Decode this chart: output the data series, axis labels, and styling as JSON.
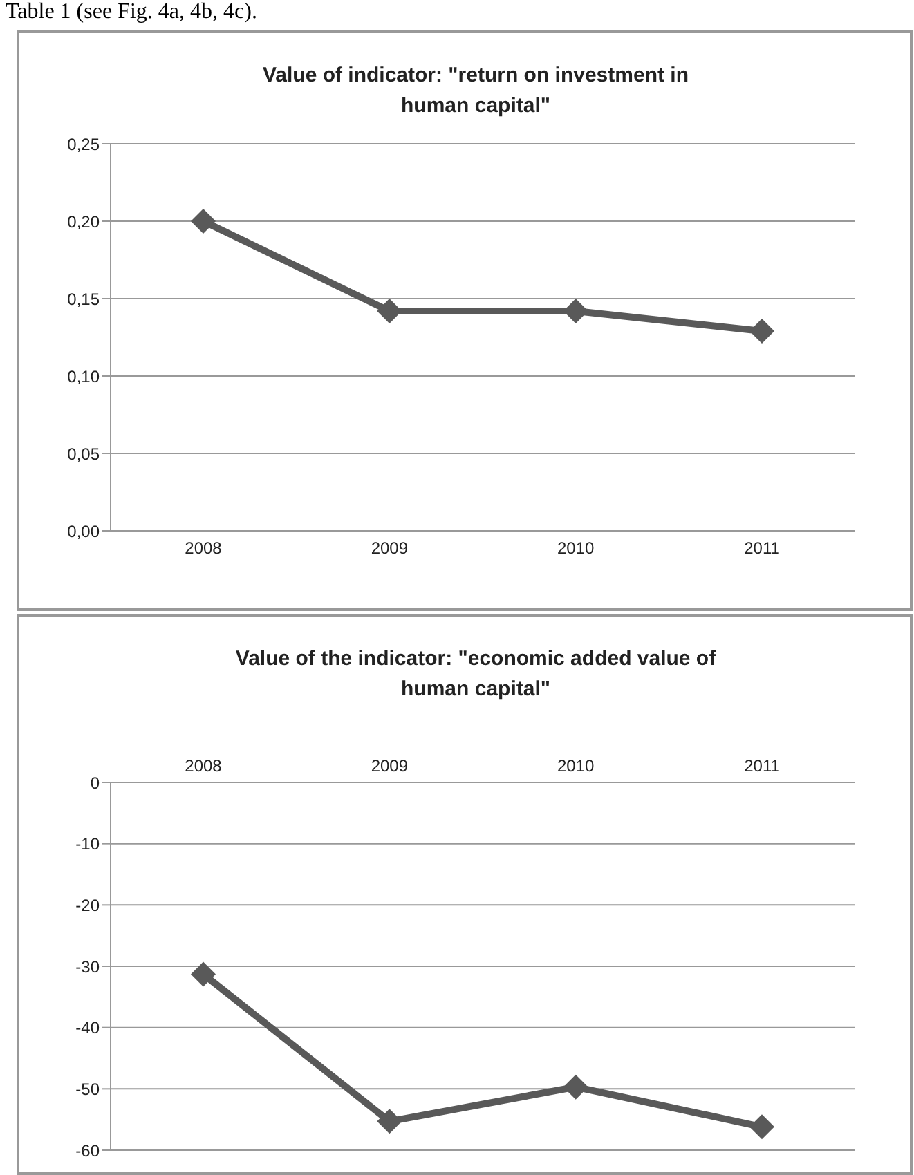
{
  "chart_data": [
    {
      "type": "line",
      "title": "Value of indicator: \"return on investment in human capital\"",
      "annotations": [
        "Table 1 (see Fig. 4a, 4b, 4c)."
      ],
      "categories": [
        "2008",
        "2009",
        "2010",
        "2011"
      ],
      "series": [
        {
          "color": "#595959",
          "values": [
            0.2,
            0.142,
            0.142,
            0.129
          ]
        }
      ],
      "ylim": [
        0,
        0.25
      ],
      "yticks": [
        {
          "value": 0,
          "label": "0,00"
        },
        {
          "value": 0.05,
          "label": "0,05"
        },
        {
          "value": 0.1,
          "label": "0,10"
        },
        {
          "value": 0.15,
          "label": "0,15"
        },
        {
          "value": 0.2,
          "label": "0,20"
        },
        {
          "value": 0.25,
          "label": "0,25"
        }
      ],
      "grid": "y",
      "marker": "diamond",
      "line_style": "solid"
    },
    {
      "type": "line",
      "title": "Value of the indicator: \"economic added value of human capital\"",
      "categories": [
        "2008",
        "2009",
        "2010",
        "2011"
      ],
      "series": [
        {
          "color": "#595959",
          "values": [
            -31.3,
            -55.3,
            -49.7,
            -56.2
          ]
        }
      ],
      "ylim": [
        -60,
        0
      ],
      "yticks": [
        -60,
        -50,
        -40,
        -30,
        -20,
        -10,
        0
      ],
      "grid": "y",
      "marker": "diamond",
      "line_style": "solid"
    }
  ]
}
